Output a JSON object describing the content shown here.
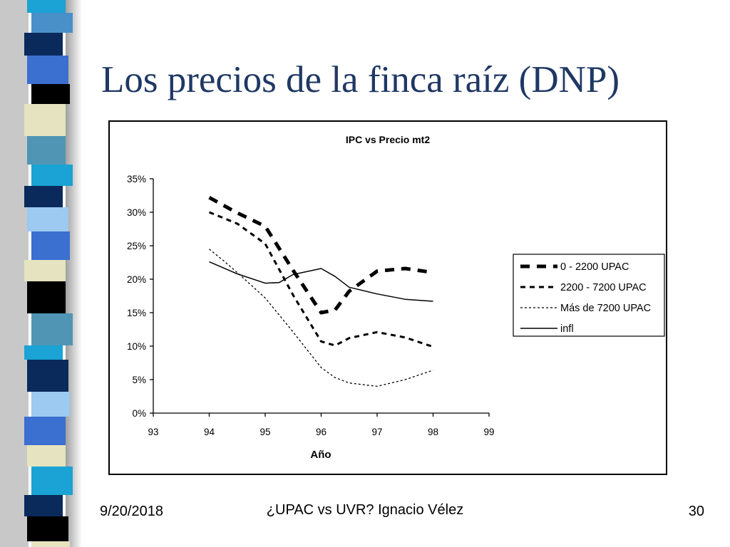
{
  "slide": {
    "title": "Los precios de la finca raíz (DNP)",
    "footer_date": "9/20/2018",
    "footer_center": "¿UPAC vs UVR? Ignacio Vélez",
    "page_number": "30"
  },
  "chart_data": {
    "type": "line",
    "title": "IPC vs Precio mt2",
    "xlabel": "Año",
    "ylabel": "",
    "xlim": [
      93,
      99
    ],
    "ylim": [
      0,
      0.35
    ],
    "x_ticks": [
      "93",
      "94",
      "95",
      "96",
      "97",
      "98",
      "99"
    ],
    "y_ticks": [
      "0%",
      "5%",
      "10%",
      "15%",
      "20%",
      "25%",
      "30%",
      "35%"
    ],
    "legend_position": "right",
    "grid": false,
    "series": [
      {
        "name": "0 - 2200 UPAC",
        "style": "thick-dash",
        "x": [
          94,
          94.5,
          95,
          95.5,
          96,
          96.25,
          96.5,
          97,
          97.5,
          98
        ],
        "y": [
          0.322,
          0.299,
          0.279,
          0.213,
          0.15,
          0.154,
          0.182,
          0.212,
          0.216,
          0.21
        ]
      },
      {
        "name": "2200 - 7200 UPAC",
        "style": "medium-dash",
        "x": [
          94,
          94.5,
          95,
          95.5,
          96,
          96.25,
          96.5,
          97,
          97.5,
          98
        ],
        "y": [
          0.3,
          0.283,
          0.253,
          0.176,
          0.107,
          0.101,
          0.112,
          0.121,
          0.113,
          0.099
        ]
      },
      {
        "name": "Más de 7200 UPAC",
        "style": "fine-dot",
        "x": [
          94,
          94.25,
          94.5,
          95,
          95.5,
          96,
          96.25,
          96.5,
          97,
          97.5,
          98
        ],
        "y": [
          0.245,
          0.228,
          0.21,
          0.172,
          0.121,
          0.068,
          0.053,
          0.045,
          0.04,
          0.05,
          0.064
        ]
      },
      {
        "name": "infl",
        "style": "solid",
        "x": [
          94,
          94.5,
          95,
          95.25,
          95.5,
          96,
          96.25,
          96.5,
          97,
          97.5,
          98
        ],
        "y": [
          0.226,
          0.208,
          0.194,
          0.195,
          0.207,
          0.216,
          0.204,
          0.188,
          0.178,
          0.17,
          0.167
        ]
      }
    ]
  }
}
